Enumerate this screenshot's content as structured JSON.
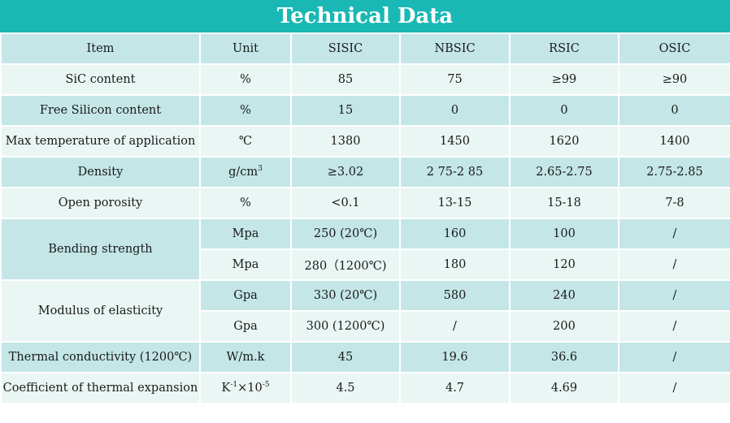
{
  "title": "Technical Data",
  "columns": [
    "Item",
    "Unit",
    "SISIC",
    "NBSIC",
    "RSIC",
    "OSIC"
  ],
  "rows": {
    "sic_content": {
      "item": "SiC content",
      "unit": "%",
      "values": [
        "85",
        "75",
        "≥99",
        "≥90"
      ]
    },
    "free_silicon": {
      "item": "Free Silicon content",
      "unit": "%",
      "values": [
        "15",
        "0",
        "0",
        "0"
      ]
    },
    "max_temp": {
      "item": "Max temperature of application",
      "unit": "℃",
      "values": [
        "1380",
        "1450",
        "1620",
        "1400"
      ]
    },
    "density": {
      "item": "Density",
      "unit_base": "g/cm",
      "unit_sup": "3",
      "values": [
        "≥3.02",
        "2 75-2 85",
        "2.65-2.75",
        "2.75-2.85"
      ]
    },
    "open_porosity": {
      "item": "Open porosity",
      "unit": "%",
      "values": [
        "<0.1",
        "13-15",
        "15-18",
        "7-8"
      ]
    },
    "bending": {
      "item": "Bending strength",
      "sub": [
        {
          "unit": "Mpa",
          "values": [
            "250 (20℃)",
            "160",
            "100",
            "/"
          ]
        },
        {
          "unit": "Mpa",
          "values": [
            "280（1200℃)",
            "180",
            "120",
            "/"
          ]
        }
      ]
    },
    "modulus": {
      "item": "Modulus of elasticity",
      "sub": [
        {
          "unit": "Gpa",
          "values": [
            "330 (20℃)",
            "580",
            "240",
            "/"
          ]
        },
        {
          "unit": "Gpa",
          "values": [
            "300 (1200℃)",
            "/",
            "200",
            "/"
          ]
        }
      ]
    },
    "thermal_cond": {
      "item": "Thermal conductivity (1200℃)",
      "unit": "W/m.k",
      "values": [
        "45",
        "19.6",
        "36.6",
        "/"
      ]
    },
    "thermal_exp": {
      "item": "Coefficient of thermal expansion",
      "unit_a": "K",
      "unit_a_sup": "-1",
      "unit_b": "×10",
      "unit_b_sup": "-5",
      "values": [
        "4.5",
        "4.7",
        "4.69",
        "/"
      ]
    }
  }
}
